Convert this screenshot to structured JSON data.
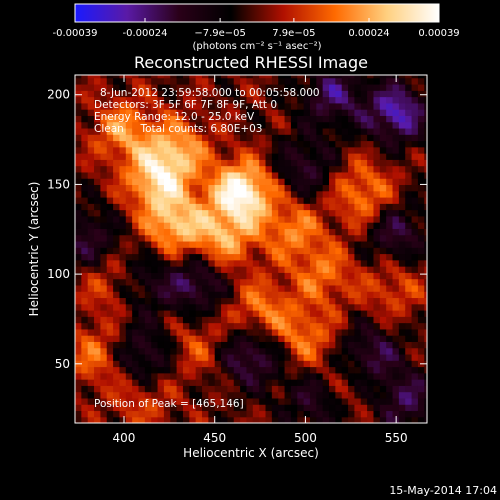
{
  "chart_data": {
    "type": "heatmap",
    "title": "Reconstructed RHESSI Image",
    "xlabel": "Heliocentric X (arcsec)",
    "ylabel": "Heliocentric Y (arcsec)",
    "xlim": [
      373,
      567
    ],
    "ylim": [
      17,
      211
    ],
    "x_ticks": [
      400,
      450,
      500,
      550
    ],
    "y_ticks": [
      50,
      100,
      150,
      200
    ],
    "colorbar": {
      "range": [
        -0.00039,
        0.00039
      ],
      "tick_values": [
        -0.00039,
        -0.00024,
        -7.9e-05,
        7.9e-05,
        0.00024,
        0.00039
      ],
      "tick_labels": [
        "-0.00039",
        "-0.00024",
        "−7.9e−05",
        "7.9e−05",
        "0.00024",
        "0.00039"
      ],
      "unit_label": "(photons cm⁻² s⁻¹ asec⁻²)",
      "colors": [
        "#1a1aff",
        "#5a1aa6",
        "#2a0018",
        "#000000",
        "#b01000",
        "#ff6a00",
        "#ffd080",
        "#ffffff"
      ]
    },
    "annotations": [
      "8-Jun-2012 23:59:58.000 to 00:05:58.000",
      "Detectors: 3F 5F 6F 7F 8F 9F, Att 0",
      "Energy Range: 12.0 - 25.0 keV",
      "Clean     Total counts: 6.80E+03"
    ],
    "peak_label": "Position of Peak = [465,146]",
    "peak": {
      "x": 465,
      "y": 146
    },
    "hot_spots": [
      {
        "x": 465,
        "y": 146,
        "value": 0.00039
      },
      {
        "x": 418,
        "y": 153,
        "value": 0.00028
      },
      {
        "x": 428,
        "y": 128,
        "value": 0.00026
      },
      {
        "x": 455,
        "y": 120,
        "value": 0.00022
      },
      {
        "x": 400,
        "y": 180,
        "value": 0.0002
      },
      {
        "x": 430,
        "y": 170,
        "value": 0.00021
      },
      {
        "x": 493,
        "y": 125,
        "value": 0.00018
      },
      {
        "x": 395,
        "y": 95,
        "value": 0.00017
      },
      {
        "x": 475,
        "y": 80,
        "value": 0.00018
      },
      {
        "x": 510,
        "y": 100,
        "value": 0.00016
      },
      {
        "x": 500,
        "y": 65,
        "value": 0.00017
      },
      {
        "x": 538,
        "y": 135,
        "value": 0.00014
      },
      {
        "x": 530,
        "y": 150,
        "value": 0.00013
      },
      {
        "x": 385,
        "y": 55,
        "value": 0.00016
      },
      {
        "x": 440,
        "y": 60,
        "value": 0.00012
      },
      {
        "x": 548,
        "y": 92,
        "value": 0.00012
      },
      {
        "x": 410,
        "y": 30,
        "value": 0.00011
      },
      {
        "x": 525,
        "y": 40,
        "value": 0.0001
      }
    ],
    "cold_spots": [
      {
        "x": 550,
        "y": 190,
        "value": -0.0003
      },
      {
        "x": 548,
        "y": 125,
        "value": -0.00025
      },
      {
        "x": 515,
        "y": 200,
        "value": -0.00022
      },
      {
        "x": 440,
        "y": 95,
        "value": -0.00022
      },
      {
        "x": 408,
        "y": 95,
        "value": -0.00018
      },
      {
        "x": 380,
        "y": 120,
        "value": -0.00018
      },
      {
        "x": 410,
        "y": 55,
        "value": -0.0002
      },
      {
        "x": 470,
        "y": 55,
        "value": -0.00024
      },
      {
        "x": 535,
        "y": 55,
        "value": -0.00022
      },
      {
        "x": 500,
        "y": 160,
        "value": -0.00018
      },
      {
        "x": 505,
        "y": 30,
        "value": -0.00016
      },
      {
        "x": 555,
        "y": 30,
        "value": -0.0002
      }
    ]
  },
  "footer": {
    "date_stamp": "15-May-2014 17:04"
  }
}
